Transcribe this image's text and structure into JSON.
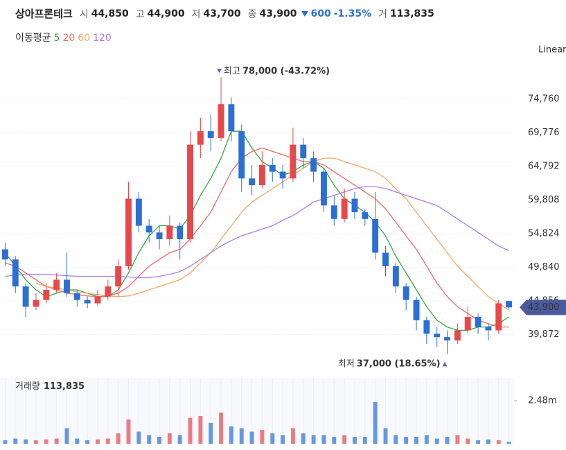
{
  "header": {
    "name": "상아프론테크",
    "items": [
      {
        "label": "시",
        "value": "44,850"
      },
      {
        "label": "고",
        "value": "44,900"
      },
      {
        "label": "저",
        "value": "43,700"
      },
      {
        "label": "종",
        "value": "43,900"
      }
    ],
    "change": "600",
    "change_pct": "-1.35%",
    "volume_label": "거",
    "volume_value": "113,835"
  },
  "legend_title": "이동평균",
  "scale_label": "Linear",
  "chart_data": [
    {
      "type": "candlestick",
      "up_color": "#e8474b",
      "down_color": "#2b6fd6",
      "ylim": [
        35000,
        80700
      ],
      "yticks": [
        {
          "value": 74760,
          "label": "74,760"
        },
        {
          "value": 69776,
          "label": "69,776"
        },
        {
          "value": 64792,
          "label": "64,792"
        },
        {
          "value": 59808,
          "label": "59,808"
        },
        {
          "value": 54824,
          "label": "54,824"
        },
        {
          "value": 49840,
          "label": "49,840"
        },
        {
          "value": 44856,
          "label": "44,856"
        },
        {
          "value": 39872,
          "label": "39,872"
        }
      ],
      "grid": true,
      "open": [
        52500,
        51000,
        47000,
        44000,
        45000,
        46500,
        48000,
        46000,
        45000,
        44500,
        45500,
        47000,
        50000,
        60000,
        56000,
        55000,
        54000,
        56000,
        54000,
        68000,
        70000,
        69000,
        74000,
        70000,
        63000,
        62000,
        65000,
        64000,
        63000,
        68000,
        66000,
        64000,
        59000,
        57000,
        60000,
        58000,
        57000,
        52000,
        50000,
        47000,
        45000,
        42000,
        40000,
        39500,
        39000,
        40500,
        42500,
        41000,
        40500,
        44850
      ],
      "high": [
        53500,
        51500,
        47500,
        46000,
        47500,
        49000,
        52000,
        46500,
        45500,
        46500,
        48000,
        51000,
        62500,
        61000,
        57000,
        56000,
        57500,
        56500,
        70000,
        72000,
        72500,
        78000,
        75000,
        71000,
        65000,
        67000,
        66000,
        65000,
        70500,
        69000,
        67000,
        64500,
        60500,
        61500,
        61000,
        58500,
        61000,
        53000,
        50500,
        47500,
        45500,
        42500,
        41000,
        40500,
        41500,
        44000,
        43000,
        41500,
        45000,
        44900
      ],
      "low": [
        50000,
        46000,
        42500,
        43500,
        44500,
        46000,
        45500,
        44000,
        43800,
        44000,
        45000,
        45500,
        49500,
        55000,
        53500,
        52500,
        53000,
        51000,
        53500,
        66000,
        67000,
        68500,
        68500,
        61000,
        60500,
        61500,
        62500,
        61500,
        62500,
        64500,
        62500,
        58000,
        56000,
        56500,
        57000,
        56000,
        51000,
        48500,
        46000,
        43500,
        40500,
        38500,
        38000,
        37000,
        38500,
        40000,
        40000,
        39000,
        40000,
        43700
      ],
      "close": [
        51000,
        47000,
        44000,
        45000,
        46500,
        48000,
        46000,
        45000,
        44500,
        45500,
        47000,
        50000,
        60000,
        56000,
        55000,
        54000,
        56000,
        54000,
        68000,
        70000,
        69000,
        74000,
        70000,
        63000,
        62000,
        65000,
        64000,
        63000,
        68000,
        66000,
        64000,
        59000,
        57000,
        60000,
        58000,
        57000,
        52000,
        50000,
        47000,
        45000,
        42000,
        40000,
        39500,
        39000,
        40500,
        42500,
        41000,
        40500,
        44500,
        43900
      ],
      "last_label": "43,900",
      "series": [
        {
          "name": "5",
          "color": "#3aa640",
          "values": [
            52000,
            50000,
            48000,
            46500,
            45500,
            46000,
            46500,
            46500,
            46000,
            45500,
            45500,
            46500,
            49000,
            52000,
            54500,
            56000,
            56000,
            55500,
            57500,
            60500,
            63000,
            66000,
            70000,
            70000,
            67500,
            65500,
            64500,
            63500,
            64000,
            65000,
            65500,
            64500,
            62000,
            60000,
            59000,
            58000,
            56500,
            54500,
            51500,
            49000,
            46500,
            44000,
            42000,
            41000,
            40500,
            40500,
            41000,
            41000,
            41500,
            42500
          ]
        },
        {
          "name": "20",
          "color": "#ef6b6b",
          "values": [
            50500,
            50000,
            49000,
            48000,
            47000,
            46500,
            46000,
            45800,
            45600,
            45500,
            45600,
            46000,
            47000,
            48500,
            50000,
            51000,
            52000,
            52500,
            54000,
            56000,
            58000,
            61000,
            64000,
            66000,
            67000,
            67500,
            67000,
            66500,
            66000,
            65500,
            65500,
            65000,
            64000,
            63000,
            62000,
            61000,
            60000,
            58500,
            56500,
            54500,
            52500,
            50000,
            47500,
            45500,
            44000,
            43000,
            42000,
            41500,
            41000,
            41000
          ]
        },
        {
          "name": "60",
          "color": "#f5a665",
          "values": [
            null,
            null,
            null,
            47500,
            47000,
            46800,
            46500,
            46200,
            46000,
            45800,
            45600,
            45500,
            45600,
            46000,
            46500,
            47000,
            47500,
            48000,
            49000,
            50500,
            52000,
            54000,
            56000,
            58000,
            59500,
            60500,
            61500,
            62500,
            63500,
            64500,
            65500,
            66000,
            66000,
            65500,
            65000,
            64500,
            64000,
            63000,
            61500,
            60000,
            58000,
            56000,
            54000,
            52000,
            50000,
            48500,
            47000,
            45500,
            44500,
            43500
          ]
        },
        {
          "name": "120",
          "color": "#a97cf0",
          "values": [
            48500,
            48700,
            48800,
            48800,
            48800,
            48700,
            48600,
            48500,
            48500,
            48500,
            48500,
            48500,
            48400,
            48300,
            48300,
            48500,
            48800,
            49200,
            50000,
            51000,
            52000,
            53000,
            53800,
            54500,
            55000,
            55500,
            56000,
            56800,
            57500,
            58500,
            59500,
            60000,
            60500,
            61000,
            61500,
            61800,
            61800,
            61500,
            61000,
            60500,
            60000,
            59500,
            59000,
            58000,
            57000,
            56000,
            55000,
            54000,
            53000,
            52300
          ]
        }
      ],
      "annotations": [
        {
          "label": "최고",
          "text": "78,000 (-43.72%)"
        },
        {
          "label": "최저",
          "text": "37,000 (18.65%)"
        }
      ]
    },
    {
      "type": "bar",
      "title_label": "거래량",
      "title_value": "113,835",
      "ylim": [
        0,
        3800000
      ],
      "yticks": [
        {
          "value": 2480000,
          "label": "2.48m"
        }
      ],
      "values": [
        200000,
        300000,
        250000,
        200000,
        250000,
        300000,
        900000,
        300000,
        200000,
        250000,
        300000,
        600000,
        1400000,
        700000,
        500000,
        400000,
        600000,
        500000,
        1500000,
        1600000,
        1200000,
        1800000,
        1000000,
        900000,
        700000,
        800000,
        600000,
        500000,
        900000,
        600000,
        500000,
        500000,
        400000,
        500000,
        400000,
        400000,
        2400000,
        900000,
        500000,
        400000,
        400000,
        500000,
        300000,
        400000,
        500000,
        300000,
        200000,
        250000,
        200000,
        113835
      ]
    }
  ]
}
